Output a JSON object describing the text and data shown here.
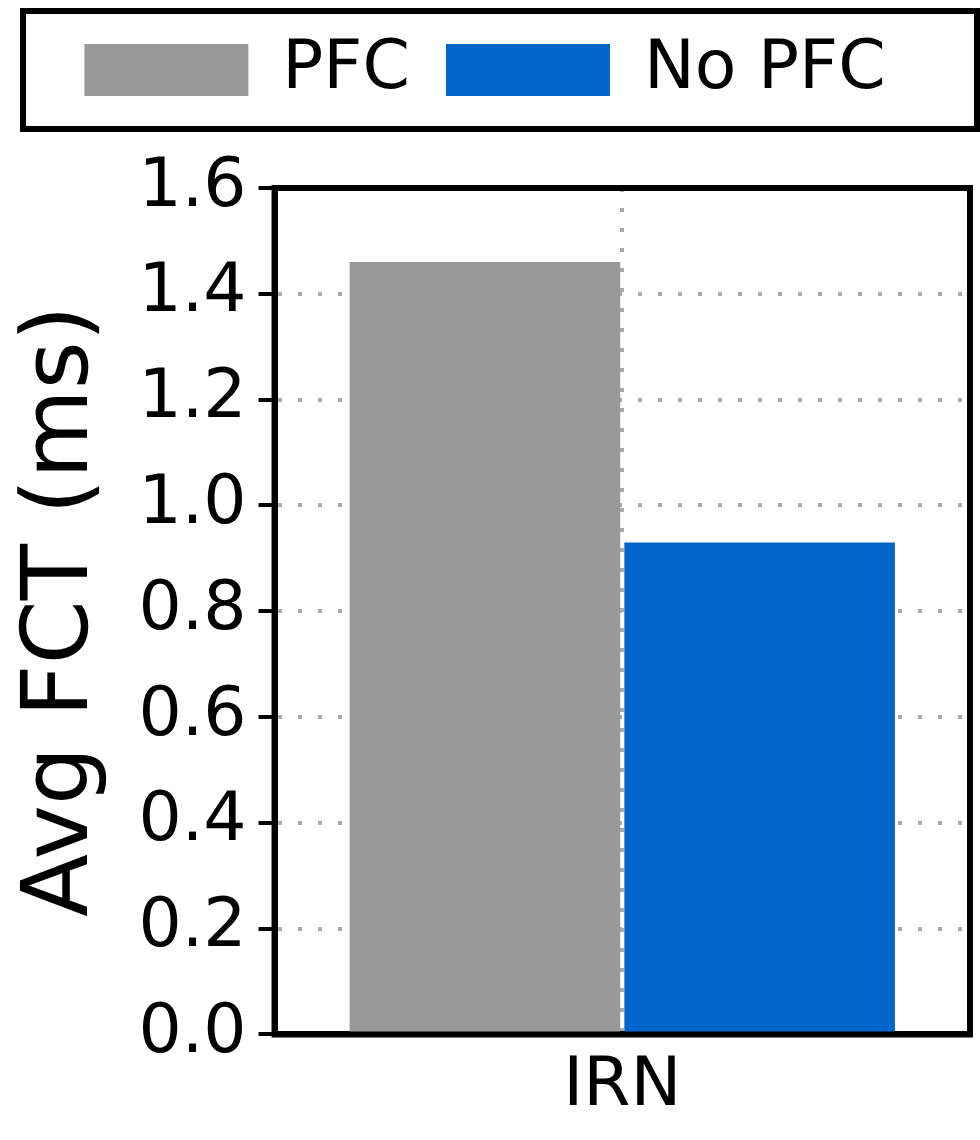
{
  "chart_data": {
    "type": "bar",
    "ylabel": "Avg FCT (ms)",
    "categories": [
      "IRN"
    ],
    "series": [
      {
        "name": "PFC",
        "color": "#999999",
        "values": [
          1.46
        ]
      },
      {
        "name": "No PFC",
        "color": "#0066cc",
        "values": [
          0.93
        ]
      }
    ],
    "ylim": [
      0,
      1.6
    ],
    "yticks": [
      {
        "value": 0,
        "label": "0.0"
      },
      {
        "value": 0.2,
        "label": "0.2"
      },
      {
        "value": 0.4,
        "label": "0.4"
      },
      {
        "value": 0.6,
        "label": "0.6"
      },
      {
        "value": 0.8,
        "label": "0.8"
      },
      {
        "value": 1,
        "label": "1.0"
      },
      {
        "value": 1.2,
        "label": "1.2"
      },
      {
        "value": 1.4,
        "label": "1.4"
      },
      {
        "value": 1.6,
        "label": "1.6"
      }
    ],
    "grid": true,
    "legend": "top"
  }
}
